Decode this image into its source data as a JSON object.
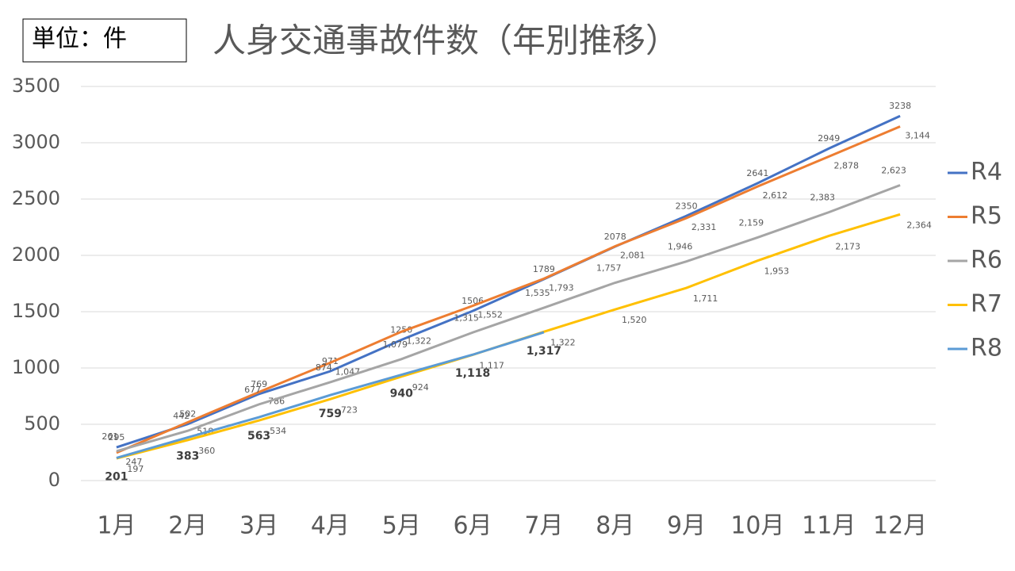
{
  "chart_data": {
    "type": "line",
    "title": "人身交通事故件数（年別推移）",
    "unit_box": "単位：件",
    "categories": [
      "1月",
      "2月",
      "3月",
      "4月",
      "5月",
      "6月",
      "7月",
      "8月",
      "9月",
      "10月",
      "11月",
      "12月"
    ],
    "ylim": [
      0,
      3500
    ],
    "yticks": [
      0,
      500,
      1000,
      1500,
      2000,
      2500,
      3000,
      3500
    ],
    "grid": true,
    "legend": "right",
    "series": [
      {
        "name": "R4",
        "color": "#4472c4",
        "values": [
          295,
          502,
          769,
          971,
          1250,
          1506,
          1789,
          2078,
          2350,
          2641,
          2949,
          3238
        ]
      },
      {
        "name": "R5",
        "color": "#ed7d31",
        "values": [
          247,
          518,
          786,
          1047,
          1322,
          1552,
          1793,
          2081,
          2331,
          2612,
          2878,
          3144
        ],
        "value_labels": [
          "247",
          "518",
          "786",
          "1,047",
          "1,322",
          "1,552",
          "1,793",
          "2,081",
          "2,331",
          "2,612",
          "2,878",
          "3,144"
        ]
      },
      {
        "name": "R6",
        "color": "#a5a5a5",
        "values": [
          261,
          442,
          677,
          874,
          1079,
          1315,
          1535,
          1757,
          1946,
          2159,
          2383,
          2623
        ],
        "value_labels": [
          "261",
          "442",
          "677",
          "874",
          "1,079",
          "1,315",
          "1,535",
          "1,757",
          "1,946",
          "2,159",
          "2,383",
          "2,623"
        ]
      },
      {
        "name": "R7",
        "color": "#ffc000",
        "values": [
          197,
          360,
          534,
          723,
          924,
          1117,
          1322,
          1520,
          1711,
          1953,
          2173,
          2364
        ],
        "value_labels": [
          "197",
          "360",
          "534",
          "723",
          "924",
          "1,117",
          "1,322",
          "1,520",
          "1,711",
          "1,953",
          "2,173",
          "2,364"
        ]
      },
      {
        "name": "R8",
        "color": "#5b9bd5",
        "values": [
          201,
          383,
          563,
          759,
          940,
          1118,
          1317,
          null,
          null,
          null,
          null,
          null
        ],
        "value_labels": [
          "201",
          "383",
          "563",
          "759",
          "940",
          "1,118",
          "1,317",
          null,
          null,
          null,
          null,
          null
        ]
      }
    ]
  }
}
